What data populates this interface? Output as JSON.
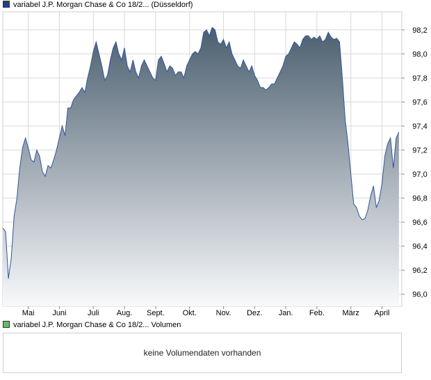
{
  "price_legend": {
    "text": "variabel J.P. Morgan Chase & Co 18/2... (Düsseldorf)",
    "color": "#1f3f8f"
  },
  "volume_legend": {
    "text": "variabel J.P. Morgan Chase & Co 18/2... Volumen",
    "color": "#5fbf5f"
  },
  "volume_panel": {
    "message": "keine Volumendaten vorhanden"
  },
  "colors": {
    "line": "#2e54a0",
    "fill_top": "#4c5f6f",
    "fill_bottom": "#f8f9fb",
    "grid": "#d8d8d8"
  },
  "chart_data": {
    "type": "area",
    "title": "",
    "xlabel": "",
    "ylabel": "",
    "ylim": [
      95.9,
      98.35
    ],
    "yticks": [
      96.0,
      96.2,
      96.4,
      96.6,
      96.8,
      97.0,
      97.2,
      97.4,
      97.6,
      97.8,
      98.0,
      98.2
    ],
    "ytick_labels": [
      "96,0",
      "96,2",
      "96,4",
      "96,6",
      "96,8",
      "97,0",
      "97,2",
      "97,4",
      "97,6",
      "97,8",
      "98,0",
      "98,2"
    ],
    "xticks": [
      "Mai",
      "Juni",
      "Juli",
      "Aug.",
      "Sept.",
      "Okt.",
      "Nov.",
      "Dez.",
      "Jan.",
      "Feb.",
      "März",
      "April"
    ],
    "xtick_positions": [
      9,
      20,
      32,
      43,
      54,
      66,
      78,
      89,
      100,
      111,
      123,
      134
    ],
    "grid": true,
    "series": [
      {
        "name": "",
        "x": [
          0,
          1,
          2,
          3,
          4,
          5,
          6,
          7,
          8,
          9,
          10,
          11,
          12,
          13,
          14,
          15,
          16,
          17,
          18,
          19,
          20,
          21,
          22,
          23,
          24,
          25,
          26,
          27,
          28,
          29,
          30,
          31,
          32,
          33,
          34,
          35,
          36,
          37,
          38,
          39,
          40,
          41,
          42,
          43,
          44,
          45,
          46,
          47,
          48,
          49,
          50,
          51,
          52,
          53,
          54,
          55,
          56,
          57,
          58,
          59,
          60,
          61,
          62,
          63,
          64,
          65,
          66,
          67,
          68,
          69,
          70,
          71,
          72,
          73,
          74,
          75,
          76,
          77,
          78,
          79,
          80,
          81,
          82,
          83,
          84,
          85,
          86,
          87,
          88,
          89,
          90,
          91,
          92,
          93,
          94,
          95,
          96,
          97,
          98,
          99,
          100,
          101,
          102,
          103,
          104,
          105,
          106,
          107,
          108,
          109,
          110,
          111,
          112,
          113,
          114,
          115,
          116,
          117,
          118,
          119,
          120,
          121,
          122,
          123,
          124,
          125,
          126,
          127,
          128,
          129,
          130,
          131,
          132,
          133,
          134,
          135,
          136,
          137,
          138,
          139,
          140
        ],
        "y": [
          96.55,
          96.52,
          96.13,
          96.3,
          96.65,
          96.8,
          97.05,
          97.22,
          97.3,
          97.22,
          97.12,
          97.1,
          97.2,
          97.15,
          97.02,
          96.98,
          97.07,
          97.05,
          97.12,
          97.2,
          97.3,
          97.4,
          97.32,
          97.55,
          97.55,
          97.62,
          97.65,
          97.68,
          97.72,
          97.68,
          97.8,
          97.9,
          98.02,
          98.1,
          98.0,
          97.9,
          97.78,
          97.82,
          97.95,
          98.05,
          98.1,
          98.0,
          97.95,
          98.05,
          97.9,
          97.85,
          97.95,
          97.85,
          97.8,
          97.9,
          97.95,
          97.9,
          97.85,
          97.8,
          97.78,
          97.95,
          97.98,
          97.92,
          97.85,
          97.9,
          97.88,
          97.82,
          97.85,
          97.85,
          97.8,
          97.9,
          97.95,
          98.0,
          98.02,
          98.0,
          98.05,
          98.18,
          98.2,
          98.15,
          98.22,
          98.2,
          98.1,
          98.08,
          98.12,
          98.05,
          98.1,
          98.0,
          97.95,
          97.9,
          97.88,
          97.95,
          97.9,
          97.85,
          97.9,
          97.82,
          97.78,
          97.72,
          97.72,
          97.7,
          97.72,
          97.75,
          97.75,
          97.8,
          97.85,
          97.9,
          97.98,
          98.0,
          98.05,
          98.1,
          98.08,
          98.05,
          98.12,
          98.15,
          98.15,
          98.12,
          98.14,
          98.12,
          98.15,
          98.1,
          98.12,
          98.18,
          98.14,
          98.12,
          98.13,
          98.1,
          97.8,
          97.45,
          97.25,
          97.0,
          96.75,
          96.72,
          96.65,
          96.62,
          96.63,
          96.7,
          96.82,
          96.9,
          96.72,
          96.78,
          96.92,
          97.15,
          97.25,
          97.3,
          97.05,
          97.3,
          97.35
        ]
      }
    ]
  }
}
